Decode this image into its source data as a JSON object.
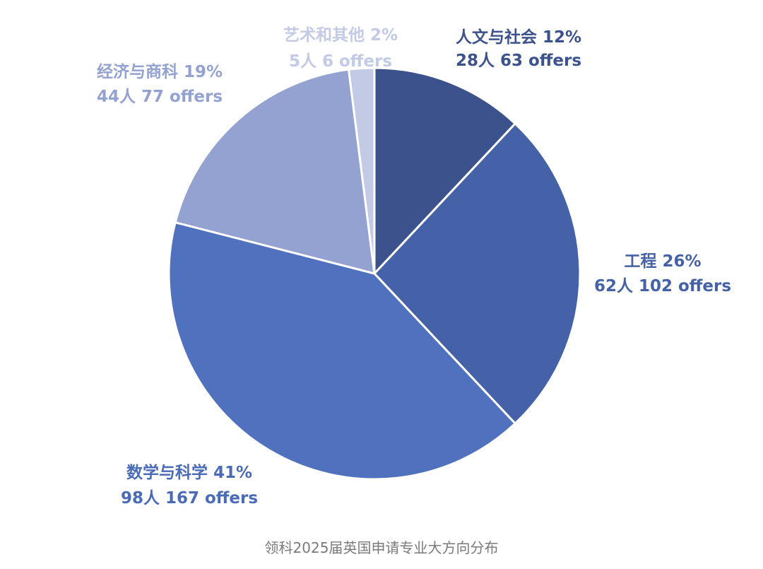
{
  "chart_data": {
    "type": "pie",
    "start_angle_deg": 0,
    "direction": "clockwise",
    "slices": [
      {
        "label": "人文与社会 12%",
        "detail": "28人 63 offers",
        "percent": 12,
        "people": 28,
        "offers": 63,
        "color": "#3b528c"
      },
      {
        "label": "工程 26%",
        "detail": "62人 102 offers",
        "percent": 26,
        "people": 62,
        "offers": 102,
        "color": "#4562a8"
      },
      {
        "label": "数学与科学 41%",
        "detail": "98人 167 offers",
        "percent": 41,
        "people": 98,
        "offers": 167,
        "color": "#5071bd"
      },
      {
        "label": "经济与商科 19%",
        "detail": "44人 77 offers",
        "percent": 19,
        "people": 44,
        "offers": 77,
        "color": "#93a2d1"
      },
      {
        "label": "艺术和其他 2%",
        "detail": "5人 6 offers",
        "percent": 2,
        "people": 5,
        "offers": 6,
        "color": "#c3cae6"
      }
    ]
  },
  "caption": "领科2025届英国申请专业大方向分布"
}
